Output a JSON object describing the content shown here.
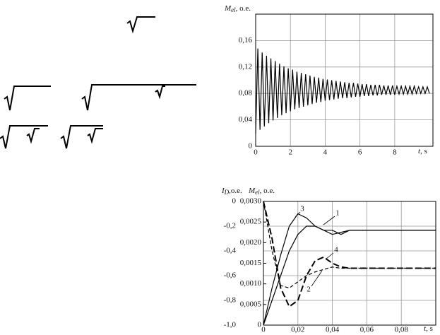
{
  "chart_data": [
    {
      "type": "line",
      "ylabel": "M",
      "ylabel_subscript": "el",
      "ylabel_unit": ", o.e.",
      "xlabel": "t",
      "xlabel_unit": ", s",
      "x": [
        0,
        0.125,
        0.25,
        0.375,
        0.5,
        0.625,
        0.75,
        0.875,
        1,
        1.125,
        1.25,
        1.375,
        1.5,
        1.625,
        1.75,
        1.875,
        2,
        2.125,
        2.25,
        2.375,
        2.5,
        2.625,
        2.75,
        2.875,
        3,
        3.125,
        3.25,
        3.375,
        3.5,
        3.625,
        3.75,
        3.875,
        4,
        4.125,
        4.25,
        4.375,
        4.5,
        4.625,
        4.75,
        4.875,
        5,
        5.125,
        5.25,
        5.375,
        5.5,
        5.625,
        5.75,
        5.875,
        6,
        6.125,
        6.25,
        6.375,
        6.5,
        6.625,
        6.75,
        6.875,
        7,
        7.125,
        7.25,
        7.375,
        7.5,
        7.625,
        7.75,
        7.875,
        8,
        8.125,
        8.25,
        8.375,
        8.5,
        8.625,
        8.75,
        8.875,
        9,
        9.125,
        9.25,
        9.375,
        9.5,
        9.625,
        9.75,
        9.875,
        10
      ],
      "series": [
        {
          "color": "#000000",
          "values": [
            0.019,
            0.148,
            0.025,
            0.142,
            0.03,
            0.137,
            0.035,
            0.133,
            0.039,
            0.129,
            0.043,
            0.125,
            0.047,
            0.121,
            0.05,
            0.118,
            0.053,
            0.116,
            0.056,
            0.113,
            0.058,
            0.111,
            0.06,
            0.109,
            0.062,
            0.107,
            0.064,
            0.105,
            0.066,
            0.104,
            0.067,
            0.102,
            0.069,
            0.101,
            0.07,
            0.1,
            0.071,
            0.099,
            0.072,
            0.098,
            0.073,
            0.097,
            0.073,
            0.096,
            0.074,
            0.096,
            0.075,
            0.095,
            0.075,
            0.094,
            0.076,
            0.094,
            0.076,
            0.093,
            0.077,
            0.093,
            0.077,
            0.093,
            0.078,
            0.092,
            0.078,
            0.092,
            0.078,
            0.092,
            0.078,
            0.091,
            0.079,
            0.091,
            0.079,
            0.091,
            0.079,
            0.091,
            0.079,
            0.091,
            0.08,
            0.09,
            0.08,
            0.09,
            0.08,
            0.09,
            0.08
          ]
        }
      ],
      "xlim": [
        0,
        10.2
      ],
      "xticks": [
        0,
        2,
        4,
        6,
        8
      ],
      "ylim": [
        0,
        0.2
      ],
      "yticks": [
        0,
        {
          "value": 0.04,
          "label": "0,04"
        },
        {
          "value": 0.08,
          "label": "0,08"
        },
        {
          "value": 0.12,
          "label": "0,12"
        },
        {
          "value": 0.16,
          "label": "0,16"
        }
      ],
      "grid": true
    },
    {
      "type": "line",
      "ylabel": "I",
      "ylabel_subscript": "D",
      "ylabel_unit": ",o.e.",
      "y2label": "M",
      "y2label_subscript": "el",
      "y2label_unit": ", o.e.",
      "xlabel": "t",
      "xlabel_unit": ", s",
      "x": [
        0,
        0.005,
        0.01,
        0.015,
        0.02,
        0.025,
        0.03,
        0.035,
        0.04,
        0.045,
        0.05,
        0.055,
        0.06,
        0.065,
        0.07,
        0.075,
        0.08,
        0.085,
        0.09,
        0.095,
        0.1
      ],
      "series": [
        {
          "name": "1",
          "color": "#000000",
          "axis": "y2",
          "line_style": "solid",
          "values": [
            0,
            0.0006,
            0.0012,
            0.0018,
            0.0022,
            0.0024,
            0.0024,
            0.0023,
            0.0023,
            0.0022,
            0.0023,
            0.0023,
            0.0023,
            0.0023,
            0.0023,
            0.0023,
            0.0023,
            0.0023,
            0.0023,
            0.0023,
            0.0023
          ]
        },
        {
          "name": "2",
          "color": "#000000",
          "line_style": "dash",
          "values": [
            0,
            -0.4,
            -0.68,
            -0.7,
            -0.65,
            -0.6,
            -0.57,
            -0.55,
            -0.53,
            -0.54,
            -0.54,
            -0.54,
            -0.54,
            -0.54,
            -0.54,
            -0.54,
            -0.54,
            -0.54,
            -0.54,
            -0.54,
            -0.54
          ]
        },
        {
          "name": "3",
          "color": "#000000",
          "axis": "y2",
          "line_style": "solid",
          "values": [
            0,
            0.0009,
            0.0017,
            0.0024,
            0.0027,
            0.0026,
            0.0024,
            0.0023,
            0.0022,
            0.00225,
            0.0023,
            0.0023,
            0.0023,
            0.0023,
            0.0023,
            0.0023,
            0.0023,
            0.0023,
            0.0023,
            0.0023,
            0.0023
          ]
        },
        {
          "name": "4",
          "color": "#000000",
          "line_style": "long-dash",
          "values": [
            0,
            -0.3,
            -0.7,
            -0.85,
            -0.8,
            -0.6,
            -0.48,
            -0.45,
            -0.5,
            -0.53,
            -0.54,
            -0.54,
            -0.54,
            -0.54,
            -0.54,
            -0.54,
            -0.54,
            -0.54,
            -0.54,
            -0.54,
            -0.54
          ]
        }
      ],
      "xlim": [
        0,
        0.1
      ],
      "xticks": [
        0,
        {
          "value": 0.02,
          "label": "0,02"
        },
        {
          "value": 0.04,
          "label": "0,04"
        },
        {
          "value": 0.06,
          "label": "0,06"
        },
        {
          "value": 0.08,
          "label": "0,08"
        }
      ],
      "ylim": [
        -1,
        0
      ],
      "yticks": [
        0,
        {
          "value": -0.2,
          "label": "-0,2"
        },
        {
          "value": -0.4,
          "label": "-0,4"
        },
        {
          "value": -0.6,
          "label": "-0,6"
        },
        {
          "value": -0.8,
          "label": "-0,8"
        },
        {
          "value": -1,
          "label": "-1,0"
        }
      ],
      "y2lim": [
        0,
        0.003
      ],
      "y2ticks": [
        0,
        {
          "value": 0.0005,
          "label": "0,0005"
        },
        {
          "value": 0.001,
          "label": "0,0010"
        },
        {
          "value": 0.0015,
          "label": "0,0015"
        },
        {
          "value": 0.002,
          "label": "0,0020"
        },
        {
          "value": 0.0025,
          "label": "0,0025"
        },
        {
          "value": 0.003,
          "label": "0,0030"
        }
      ],
      "grid": true
    }
  ]
}
